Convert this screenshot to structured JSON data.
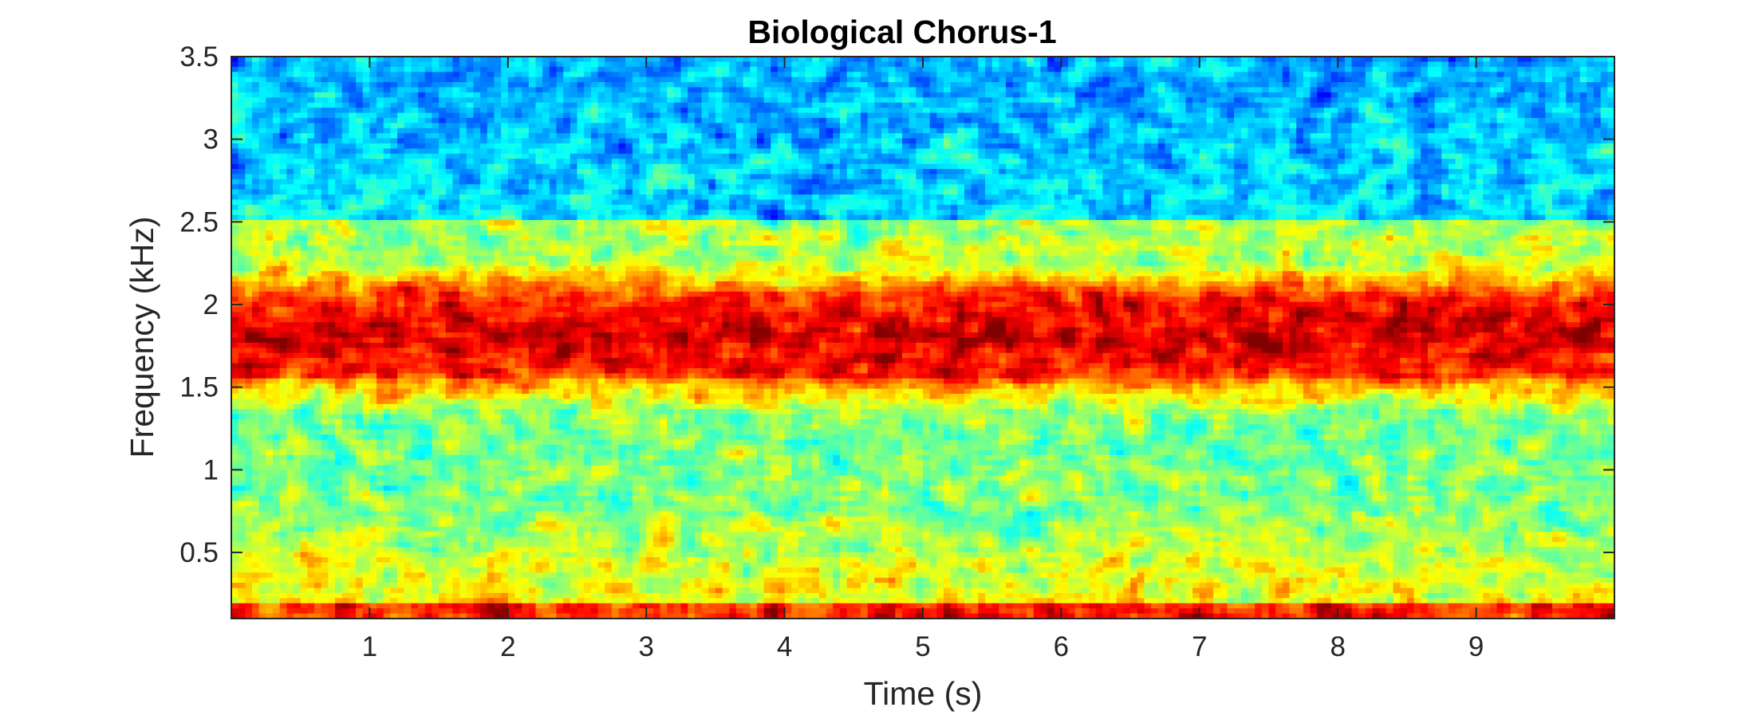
{
  "chart_data": {
    "type": "heatmap",
    "title": "Biological Chorus-1",
    "xlabel": "Time (s)",
    "ylabel": "Frequency (kHz)",
    "xlim": [
      0,
      10
    ],
    "ylim": [
      0.1,
      3.5
    ],
    "xticks": [
      1,
      2,
      3,
      4,
      5,
      6,
      7,
      8,
      9
    ],
    "xtick_labels": [
      "1",
      "2",
      "3",
      "4",
      "5",
      "6",
      "7",
      "8",
      "9"
    ],
    "yticks": [
      0.5,
      1,
      1.5,
      2,
      2.5,
      3,
      3.5
    ],
    "ytick_labels": [
      "0.5",
      "1",
      "1.5",
      "2",
      "2.5",
      "3",
      "3.5"
    ],
    "colormap": "jet",
    "grid": false,
    "features": [
      {
        "name": "chorus band",
        "freq_range_khz": [
          1.55,
          2.05
        ],
        "level": "high"
      },
      {
        "name": "low-frequency noise",
        "freq_range_khz": [
          0.1,
          0.8
        ],
        "level": "medium-high"
      },
      {
        "name": "background",
        "freq_range_khz": [
          2.5,
          3.5
        ],
        "level": "low"
      }
    ]
  }
}
